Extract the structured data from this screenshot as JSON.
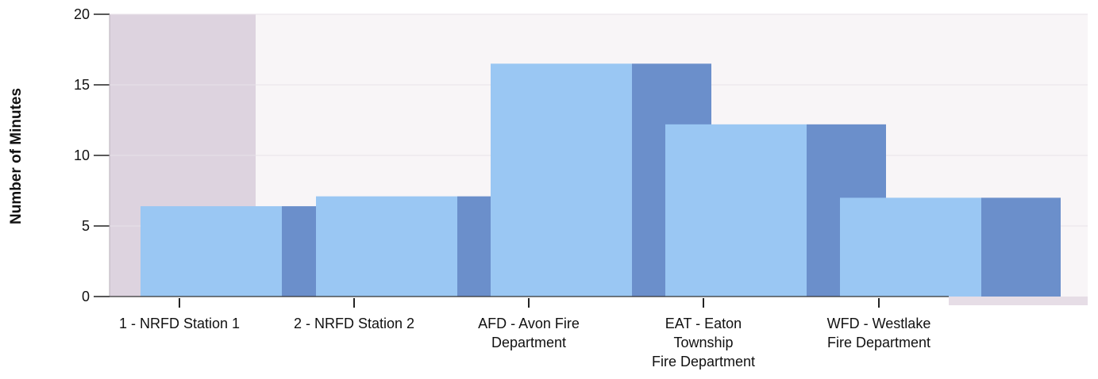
{
  "chart_data": {
    "type": "bar",
    "title": "",
    "ylabel": "Number of Minutes",
    "xlabel": "",
    "ylim": [
      0,
      20
    ],
    "yticks": [
      0,
      5,
      10,
      15,
      20
    ],
    "categories": [
      [
        "1 - NRFD Station 1"
      ],
      [
        "2 - NRFD Station 2"
      ],
      [
        "AFD - Avon Fire",
        "Department"
      ],
      [
        "EAT - Eaton",
        "Township",
        "Fire Department"
      ],
      [
        "WFD - Westlake",
        "Fire Department"
      ]
    ],
    "values": [
      6.4,
      7.1,
      16.5,
      12.2,
      7.0
    ],
    "colors": {
      "bar_front": "#9ac7f3",
      "bar_side": "#6b8fcb",
      "left_panel": "#ddd3df",
      "plot_bg": "#f8f5f7",
      "bottom_strip": "#e6dde6"
    }
  }
}
